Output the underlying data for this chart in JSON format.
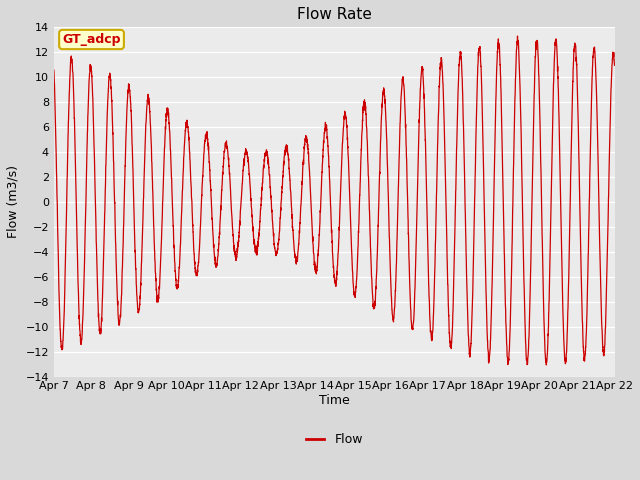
{
  "title": "Flow Rate",
  "xlabel": "Time",
  "ylabel": "Flow (m3/s)",
  "ylim": [
    -14,
    14
  ],
  "yticks": [
    -14,
    -12,
    -10,
    -8,
    -6,
    -4,
    -2,
    0,
    2,
    4,
    6,
    8,
    10,
    12,
    14
  ],
  "xtick_labels": [
    "Apr 7",
    "Apr 8",
    "Apr 9",
    "Apr 10",
    "Apr 11",
    "Apr 12",
    "Apr 13",
    "Apr 14",
    "Apr 15",
    "Apr 16",
    "Apr 17",
    "Apr 18",
    "Apr 19",
    "Apr 20",
    "Apr 21",
    "Apr 22"
  ],
  "line_color": "#cc0000",
  "line_width": 0.9,
  "bg_color": "#d9d9d9",
  "plot_bg_color": "#ebebeb",
  "grid_color": "#ffffff",
  "legend_label": "Flow",
  "annotation_text": "GT_adcp",
  "annotation_bg": "#ffffcc",
  "annotation_border": "#ccaa00",
  "annotation_text_color": "#cc0000",
  "title_fontsize": 11,
  "axis_fontsize": 9,
  "tick_fontsize": 8
}
